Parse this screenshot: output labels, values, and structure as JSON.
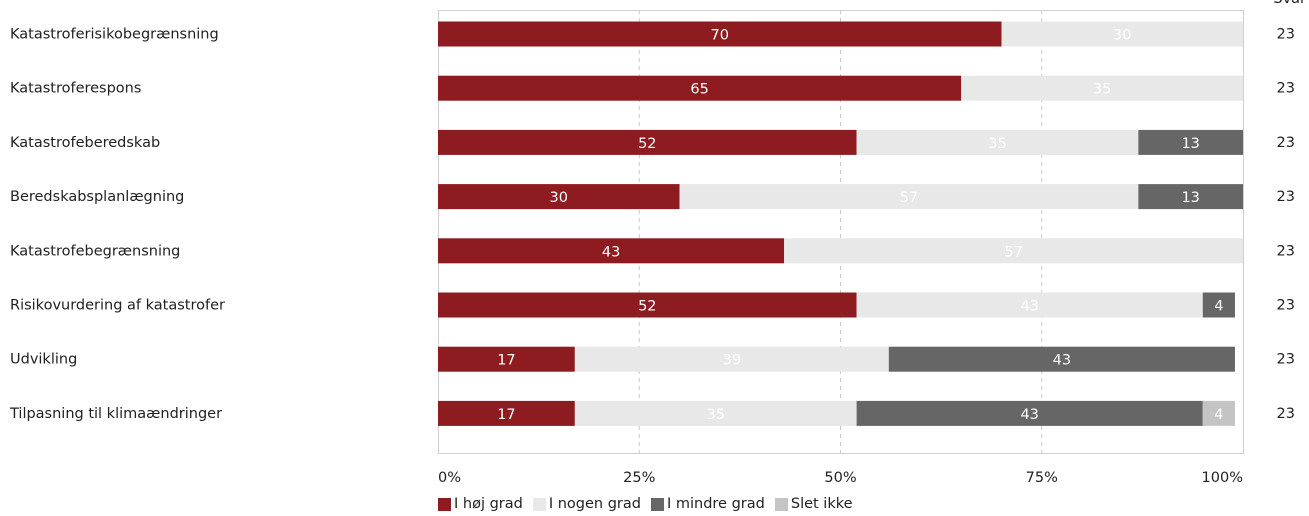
{
  "chart_data": {
    "type": "bar",
    "orientation": "horizontal",
    "stacked": true,
    "n_header": "Svar",
    "categories": [
      "Katastroferisikobegrænsning",
      "Katastroferespons",
      "Katastrofeberedskab",
      "Beredskabsplanlægning",
      "Katastrofebegrænsning",
      "Risikovurdering af katastrofer",
      "Udvikling",
      "Tilpasning til klimaændringer"
    ],
    "n": [
      23,
      23,
      23,
      23,
      23,
      23,
      23,
      23
    ],
    "series": [
      {
        "name": "I høj grad",
        "color": "#8e1b1f",
        "label_color": "#ffffff",
        "values": [
          70,
          65,
          52,
          30,
          43,
          52,
          17,
          17
        ]
      },
      {
        "name": "I nogen grad",
        "color": "#e8e8e8",
        "label_color": "#ffffff",
        "values": [
          30,
          35,
          35,
          57,
          57,
          43,
          39,
          35
        ]
      },
      {
        "name": "I mindre grad",
        "color": "#666666",
        "label_color": "#ffffff",
        "values": [
          0,
          0,
          13,
          13,
          0,
          4,
          43,
          43
        ]
      },
      {
        "name": "Slet ikke",
        "color": "#c4c4c4",
        "label_color": "#ffffff",
        "values": [
          0,
          0,
          0,
          0,
          0,
          0,
          0,
          4
        ]
      }
    ],
    "x_ticks": [
      "0%",
      "25%",
      "50%",
      "75%",
      "100%"
    ],
    "xlim": [
      0,
      100
    ],
    "grid": true,
    "legend_position": "bottom"
  }
}
